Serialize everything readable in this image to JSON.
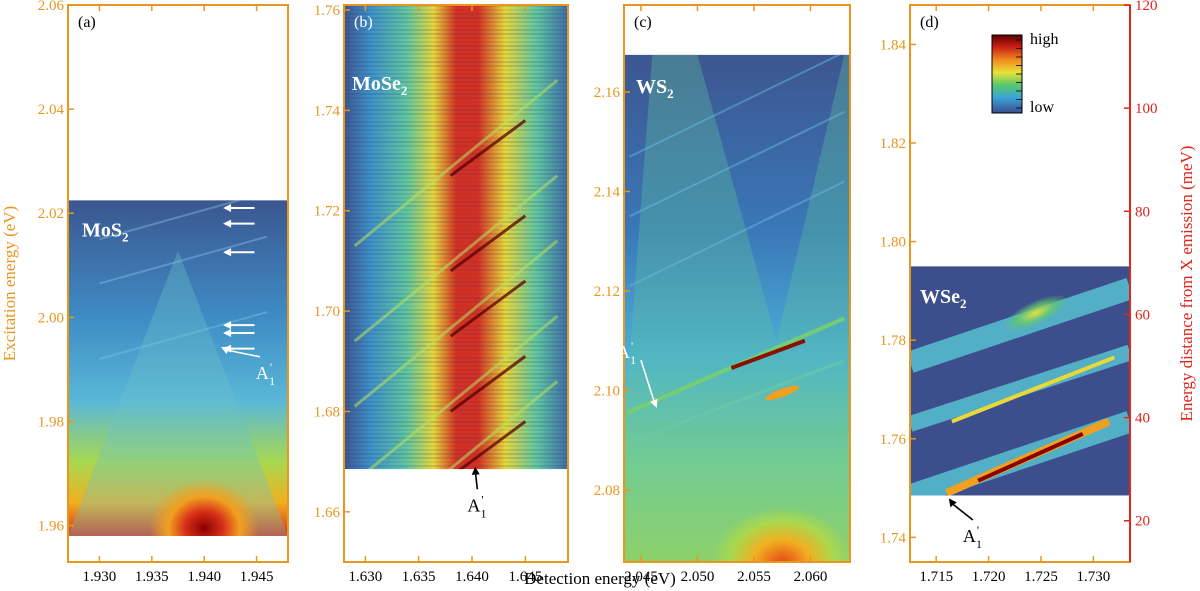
{
  "figure": {
    "xlabel_common": "Detection energy (eV)",
    "colors": {
      "left_axis": "#e8961e",
      "right_axis": "#e0251b"
    },
    "colorbar": {
      "high_label": "high",
      "low_label": "low"
    }
  },
  "chart_data": [
    {
      "type": "heatmap",
      "panel_label": "(a)",
      "material_main": "MoS",
      "material_sub": "2",
      "ylabel": "Excitation energy (eV)",
      "xlim": [
        1.927,
        1.948
      ],
      "ylim": [
        1.953,
        2.06
      ],
      "xticks": [
        1.93,
        1.935,
        1.94,
        1.945
      ],
      "xtick_labels": [
        "1.930",
        "1.935",
        "1.940",
        "1.945"
      ],
      "yticks": [
        1.96,
        1.98,
        2.0,
        2.02,
        2.04,
        2.06
      ],
      "ytick_labels": [
        "1.96",
        "1.98",
        "2.00",
        "2.02",
        "2.04",
        "2.06"
      ],
      "data_extent_y": [
        1.958,
        2.0225
      ],
      "annotation": {
        "main": "A",
        "sup": "'",
        "sub": "1",
        "x": 1.9457,
        "y": 1.9905,
        "arrow_to": [
          1.9416,
          1.9943
        ]
      },
      "markers_y": [
        2.021,
        2.018,
        2.0125,
        1.9985,
        1.997,
        1.994
      ]
    },
    {
      "type": "heatmap",
      "panel_label": "(b)",
      "material_main": "MoSe",
      "material_sub": "2",
      "xlim": [
        1.628,
        1.649
      ],
      "ylim": [
        1.65,
        1.761
      ],
      "xticks": [
        1.63,
        1.635,
        1.64,
        1.645
      ],
      "xtick_labels": [
        "1.630",
        "1.635",
        "1.640",
        "1.645"
      ],
      "yticks": [
        1.66,
        1.68,
        1.7,
        1.72,
        1.74,
        1.76
      ],
      "ytick_labels": [
        "1.66",
        "1.68",
        "1.70",
        "1.72",
        "1.74",
        "1.76"
      ],
      "data_extent_y": [
        1.6685,
        1.761
      ],
      "annotation": {
        "main": "A",
        "sup": "'",
        "sub": "1",
        "x": 1.6405,
        "y": 1.6625,
        "arrow_to": [
          1.6403,
          1.669
        ]
      }
    },
    {
      "type": "heatmap",
      "panel_label": "(c)",
      "material_main": "WS",
      "material_sub": "2",
      "xlim": [
        2.0435,
        2.0635
      ],
      "ylim": [
        2.0655,
        2.1775
      ],
      "xticks": [
        2.045,
        2.05,
        2.055,
        2.06
      ],
      "xtick_labels": [
        "2.045",
        "2.050",
        "2.055",
        "2.060"
      ],
      "yticks": [
        2.08,
        2.1,
        2.12,
        2.14,
        2.16
      ],
      "ytick_labels": [
        "2.08",
        "2.10",
        "2.12",
        "2.14",
        "2.16"
      ],
      "data_extent_y": [
        2.0655,
        2.1675
      ],
      "annotation": {
        "main": "A",
        "sup": "'",
        "sub": "1",
        "x": 2.045,
        "y": 2.1045,
        "arrow_to": [
          2.0464,
          2.0965
        ]
      }
    },
    {
      "type": "heatmap",
      "panel_label": "(d)",
      "material_main": "WSe",
      "material_sub": "2",
      "ylabel_right": "Energy distance from X emission (meV)",
      "xlim": [
        1.7125,
        1.7335
      ],
      "ylim": [
        1.735,
        1.848
      ],
      "xticks": [
        1.715,
        1.72,
        1.725,
        1.73
      ],
      "xtick_labels": [
        "1.715",
        "1.720",
        "1.725",
        "1.730"
      ],
      "yticks": [
        1.74,
        1.76,
        1.78,
        1.8,
        1.82,
        1.84
      ],
      "ytick_labels": [
        "1.74",
        "1.76",
        "1.78",
        "1.80",
        "1.82",
        "1.84"
      ],
      "y2lim": [
        12,
        120
      ],
      "y2ticks": [
        20,
        40,
        60,
        80,
        100,
        120
      ],
      "y2tick_labels": [
        "20",
        "40",
        "60",
        "80",
        "100",
        "120"
      ],
      "data_extent_y": [
        1.7485,
        1.795
      ],
      "annotation": {
        "main": "A",
        "sup": "'",
        "sub": "1",
        "x": 1.7185,
        "y": 1.7415,
        "arrow_to": [
          1.7162,
          1.7479
        ]
      }
    }
  ]
}
